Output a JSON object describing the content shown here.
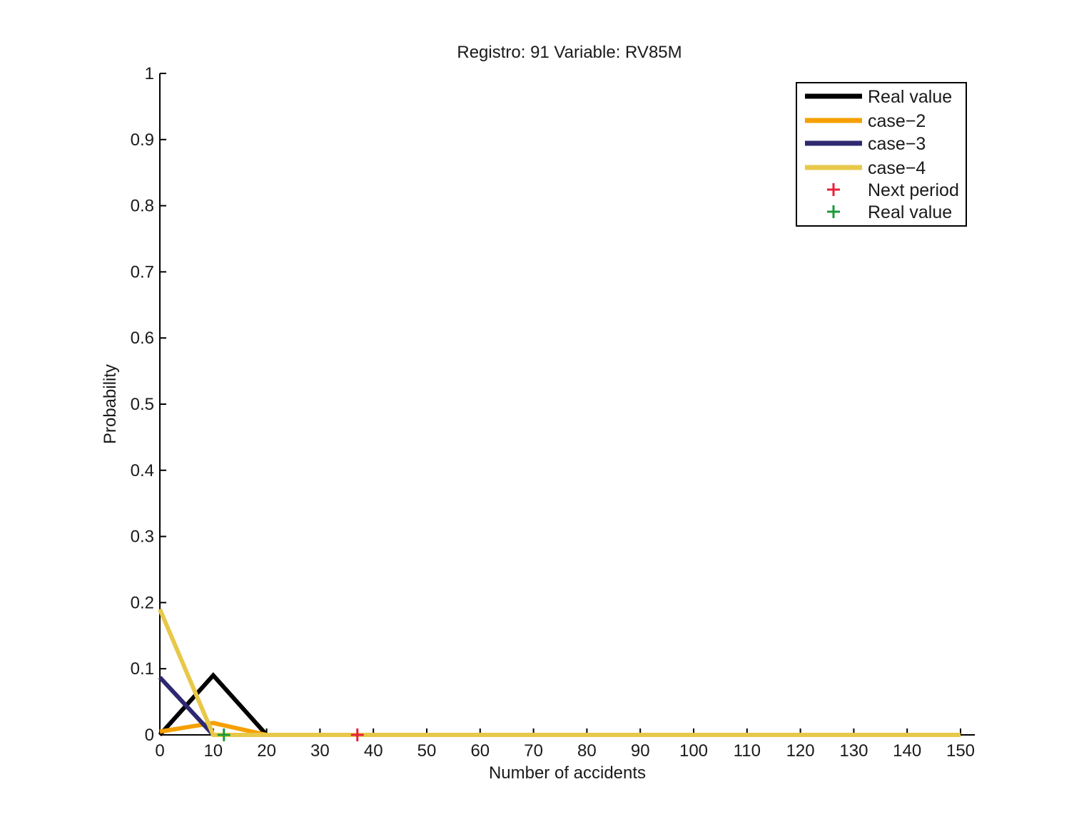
{
  "chart_data": {
    "type": "line",
    "title": "Registro: 91 Variable: RV85M",
    "xlabel": "Number of accidents",
    "ylabel": "Probability",
    "xlim": [
      0,
      150
    ],
    "ylim": [
      0,
      1
    ],
    "xticks": [
      0,
      10,
      20,
      30,
      40,
      50,
      60,
      70,
      80,
      90,
      100,
      110,
      120,
      130,
      140,
      150
    ],
    "yticks": [
      0,
      0.1,
      0.2,
      0.3,
      0.4,
      0.5,
      0.6,
      0.7,
      0.8,
      0.9,
      1
    ],
    "ytick_labels": [
      "0",
      "0.1",
      "0.2",
      "0.3",
      "0.4",
      "0.5",
      "0.6",
      "0.7",
      "0.8",
      "0.9",
      "1"
    ],
    "grid": false,
    "legend_position": "top-right",
    "series": [
      {
        "name": "Real value",
        "color": "#000000",
        "x": [
          0,
          10,
          20,
          150
        ],
        "y": [
          0,
          0.09,
          0,
          0
        ]
      },
      {
        "name": "case−2",
        "color": "#f5a000",
        "x": [
          0,
          10,
          20,
          150
        ],
        "y": [
          0.005,
          0.018,
          0,
          0
        ]
      },
      {
        "name": "case−3",
        "color": "#2e2870",
        "x": [
          0,
          10,
          20,
          150
        ],
        "y": [
          0.087,
          0,
          0,
          0
        ]
      },
      {
        "name": "case−4",
        "color": "#e8c84a",
        "x": [
          0,
          10,
          20,
          150
        ],
        "y": [
          0.19,
          0,
          0,
          0
        ]
      }
    ],
    "markers": [
      {
        "name": "Next period",
        "color": "#e8203a",
        "symbol": "+",
        "x": 37,
        "y": 0
      },
      {
        "name": "Real value",
        "color": "#1a9a3a",
        "symbol": "+",
        "x": 12,
        "y": 0
      }
    ]
  }
}
